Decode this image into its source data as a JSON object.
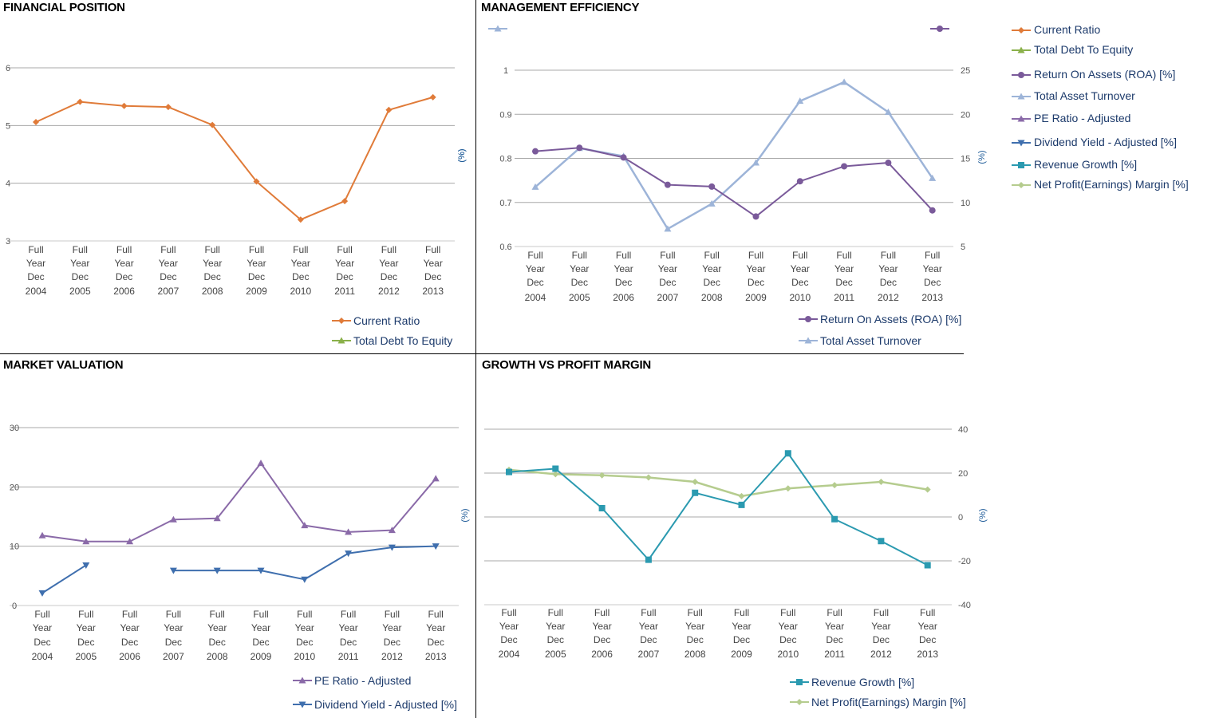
{
  "panels": {
    "financial": {
      "title": "FINANCIAL POSITION"
    },
    "management": {
      "title": "MANAGEMENT EFFICIENCY"
    },
    "market": {
      "title": "MARKET VALUATION"
    },
    "growth": {
      "title": "GROWTH VS PROFIT MARGIN"
    }
  },
  "side_legend": {
    "items": [
      {
        "label": "Current Ratio",
        "color": "#e07b39",
        "marker": "diamond"
      },
      {
        "label": "Total Debt To Equity",
        "color": "#8ab04a",
        "marker": "triangle"
      },
      {
        "label": "Return On Assets (ROA) [%]",
        "color": "#7a5a9a",
        "marker": "circle"
      },
      {
        "label": "Total Asset Turnover",
        "color": "#9db4d8",
        "marker": "triangle"
      },
      {
        "label": "PE Ratio - Adjusted",
        "color": "#8a6aa8",
        "marker": "triangle"
      },
      {
        "label": "Dividend Yield - Adjusted [%]",
        "color": "#3f6fae",
        "marker": "triangle-down"
      },
      {
        "label": "Revenue Growth [%]",
        "color": "#2b9ab0",
        "marker": "square"
      },
      {
        "label": "Net Profit(Earnings) Margin [%]",
        "color": "#b5cc8e",
        "marker": "diamond"
      }
    ]
  },
  "chart_data": [
    {
      "id": "financial",
      "type": "line",
      "title": "FINANCIAL POSITION",
      "categories": [
        "Full Year Dec 2004",
        "Full Year Dec 2005",
        "Full Year Dec 2006",
        "Full Year Dec 2007",
        "Full Year Dec 2008",
        "Full Year Dec 2009",
        "Full Year Dec 2010",
        "Full Year Dec 2011",
        "Full Year Dec 2012",
        "Full Year Dec 2013"
      ],
      "ylim": [
        3,
        6
      ],
      "yticks": [
        3,
        4,
        5,
        6
      ],
      "right_unit": "(%)",
      "series": [
        {
          "name": "Current Ratio",
          "color": "#e07b39",
          "marker": "diamond",
          "axis": "left",
          "values": [
            5.06,
            5.41,
            5.34,
            5.32,
            5.01,
            4.03,
            3.37,
            3.69,
            5.27,
            5.49
          ]
        }
      ],
      "legend": [
        "Current Ratio",
        "Total Debt To Equity"
      ],
      "legend_colors": [
        "#e07b39",
        "#8ab04a"
      ],
      "legend_markers": [
        "diamond",
        "triangle"
      ]
    },
    {
      "id": "management",
      "type": "line",
      "title": "MANAGEMENT EFFICIENCY",
      "categories": [
        "Full Year Dec 2004",
        "Full Year Dec 2005",
        "Full Year Dec 2006",
        "Full Year Dec 2007",
        "Full Year Dec 2008",
        "Full Year Dec 2009",
        "Full Year Dec 2010",
        "Full Year Dec 2011",
        "Full Year Dec 2012",
        "Full Year Dec 2013"
      ],
      "ylim": [
        0.6,
        1
      ],
      "yticks": [
        0.6,
        0.7,
        0.8,
        0.9,
        1
      ],
      "y2lim": [
        5,
        25
      ],
      "y2ticks": [
        5,
        10,
        15,
        20,
        25
      ],
      "right_unit": "(%)",
      "series": [
        {
          "name": "Total Asset Turnover",
          "color": "#9db4d8",
          "marker": "triangle",
          "axis": "left",
          "width": 2.5,
          "values": [
            0.735,
            0.823,
            0.805,
            0.64,
            0.697,
            0.79,
            0.93,
            0.973,
            0.905,
            0.755
          ]
        },
        {
          "name": "Return On Assets (ROA) [%]",
          "color": "#7a5a9a",
          "marker": "circle",
          "axis": "right",
          "values": [
            15.8,
            16.2,
            15.1,
            12.0,
            11.8,
            8.4,
            12.4,
            14.1,
            14.5,
            9.1
          ]
        }
      ],
      "legend": [
        "Return On Assets (ROA) [%]",
        "Total Asset Turnover"
      ],
      "legend_colors": [
        "#7a5a9a",
        "#9db4d8"
      ],
      "legend_markers": [
        "circle",
        "triangle"
      ]
    },
    {
      "id": "market",
      "type": "line",
      "title": "MARKET VALUATION",
      "categories": [
        "Full Year Dec 2004",
        "Full Year Dec 2005",
        "Full Year Dec 2006",
        "Full Year Dec 2007",
        "Full Year Dec 2008",
        "Full Year Dec 2009",
        "Full Year Dec 2010",
        "Full Year Dec 2011",
        "Full Year Dec 2012",
        "Full Year Dec 2013"
      ],
      "ylim": [
        0,
        30
      ],
      "yticks": [
        0,
        10,
        20,
        30
      ],
      "right_unit": "(%)",
      "series": [
        {
          "name": "PE Ratio - Adjusted",
          "color": "#8a6aa8",
          "marker": "triangle",
          "axis": "left",
          "values": [
            11.8,
            10.8,
            10.8,
            14.5,
            14.7,
            24.0,
            13.5,
            12.4,
            12.7,
            21.4
          ]
        },
        {
          "name": "Dividend Yield - Adjusted [%]",
          "color": "#3f6fae",
          "marker": "triangle-down",
          "axis": "left",
          "values": [
            2.1,
            6.8,
            null,
            5.9,
            5.9,
            5.9,
            4.4,
            8.8,
            9.8,
            10.0
          ]
        }
      ],
      "legend": [
        "PE Ratio - Adjusted",
        "Dividend Yield - Adjusted [%]"
      ],
      "legend_colors": [
        "#8a6aa8",
        "#3f6fae"
      ],
      "legend_markers": [
        "triangle",
        "triangle-down"
      ]
    },
    {
      "id": "growth",
      "type": "line",
      "title": "GROWTH VS PROFIT MARGIN",
      "categories": [
        "Full Year Dec 2004",
        "Full Year Dec 2005",
        "Full Year Dec 2006",
        "Full Year Dec 2007",
        "Full Year Dec 2008",
        "Full Year Dec 2009",
        "Full Year Dec 2010",
        "Full Year Dec 2011",
        "Full Year Dec 2012",
        "Full Year Dec 2013"
      ],
      "y2lim": [
        -40,
        40
      ],
      "y2ticks": [
        -40,
        -20,
        0,
        20,
        40
      ],
      "right_unit": "(%)",
      "series": [
        {
          "name": "Net Profit(Earnings) Margin [%]",
          "color": "#b5cc8e",
          "marker": "diamond",
          "axis": "right",
          "width": 2.5,
          "values": [
            21.5,
            19.5,
            19.0,
            18.0,
            16.0,
            9.5,
            13.0,
            14.5,
            16.0,
            12.5
          ]
        },
        {
          "name": "Revenue Growth [%]",
          "color": "#2b9ab0",
          "marker": "square",
          "axis": "right",
          "values": [
            20.5,
            22.0,
            4.0,
            -19.5,
            11.0,
            5.5,
            29.0,
            -1.0,
            -11.0,
            -22.0
          ]
        }
      ],
      "legend": [
        "Revenue Growth [%]",
        "Net Profit(Earnings) Margin [%]"
      ],
      "legend_colors": [
        "#2b9ab0",
        "#b5cc8e"
      ],
      "legend_markers": [
        "square",
        "diamond"
      ]
    }
  ]
}
